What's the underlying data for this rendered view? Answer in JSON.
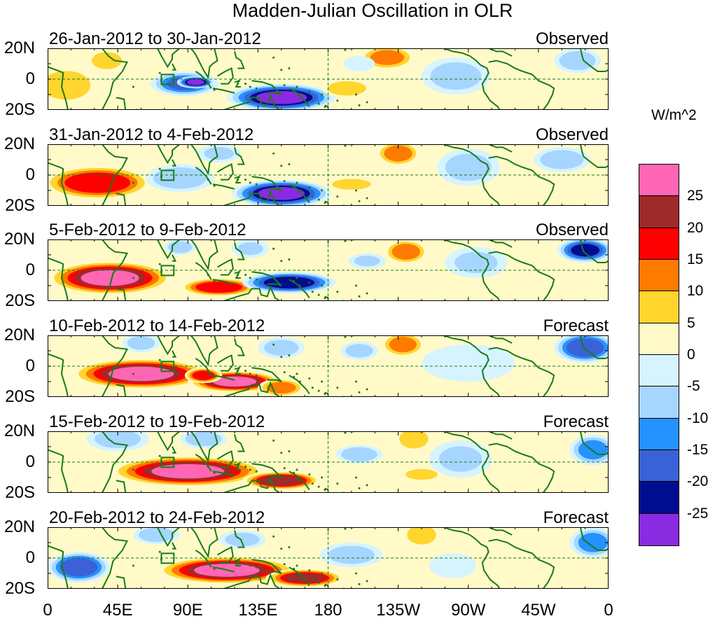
{
  "title": "Madden-Julian Oscillation in OLR",
  "panels": [
    {
      "date": "26-Jan-2012 to 30-Jan-2012",
      "status": "Observed",
      "anoms": [
        {
          "lon": 12,
          "lat": -4,
          "rx": 20,
          "ry": 12,
          "v": 12
        },
        {
          "lon": 38,
          "lat": 12,
          "rx": 14,
          "ry": 8,
          "v": 8
        },
        {
          "lon": 62,
          "lat": -10,
          "rx": 12,
          "ry": 8,
          "v": 6
        },
        {
          "lon": 88,
          "lat": -3,
          "rx": 22,
          "ry": 8,
          "v": -18
        },
        {
          "lon": 95,
          "lat": -2,
          "rx": 12,
          "ry": 4,
          "v": -28
        },
        {
          "lon": 150,
          "lat": -12,
          "rx": 35,
          "ry": 9,
          "v": -28
        },
        {
          "lon": 115,
          "lat": 14,
          "rx": 12,
          "ry": 6,
          "v": 6
        },
        {
          "lon": 192,
          "lat": -6,
          "rx": 16,
          "ry": 6,
          "v": 12
        },
        {
          "lon": 218,
          "lat": 14,
          "rx": 18,
          "ry": 8,
          "v": 14
        },
        {
          "lon": 200,
          "lat": 10,
          "rx": 10,
          "ry": 5,
          "v": -6
        },
        {
          "lon": 262,
          "lat": 2,
          "rx": 22,
          "ry": 12,
          "v": -10
        },
        {
          "lon": 300,
          "lat": -8,
          "rx": 16,
          "ry": 8,
          "v": 6
        },
        {
          "lon": 340,
          "lat": 12,
          "rx": 15,
          "ry": 8,
          "v": -12
        },
        {
          "lon": 350,
          "lat": -4,
          "rx": 8,
          "ry": 8,
          "v": 5
        }
      ]
    },
    {
      "date": "31-Jan-2012 to 4-Feb-2012",
      "status": "Observed",
      "anoms": [
        {
          "lon": 32,
          "lat": -5,
          "rx": 35,
          "ry": 11,
          "v": 22
        },
        {
          "lon": 85,
          "lat": -2,
          "rx": 22,
          "ry": 9,
          "v": -12
        },
        {
          "lon": 150,
          "lat": -12,
          "rx": 32,
          "ry": 9,
          "v": -28
        },
        {
          "lon": 110,
          "lat": 14,
          "rx": 14,
          "ry": 6,
          "v": -8
        },
        {
          "lon": 80,
          "lat": 14,
          "rx": 12,
          "ry": 6,
          "v": 6
        },
        {
          "lon": 225,
          "lat": 14,
          "rx": 14,
          "ry": 8,
          "v": 16
        },
        {
          "lon": 270,
          "lat": 5,
          "rx": 20,
          "ry": 12,
          "v": -10
        },
        {
          "lon": 330,
          "lat": 10,
          "rx": 18,
          "ry": 8,
          "v": -12
        },
        {
          "lon": 295,
          "lat": -8,
          "rx": 14,
          "ry": 6,
          "v": 6
        },
        {
          "lon": 195,
          "lat": -6,
          "rx": 18,
          "ry": 5,
          "v": 8
        }
      ]
    },
    {
      "date": "5-Feb-2012 to 9-Feb-2012",
      "status": "Observed",
      "anoms": [
        {
          "lon": 40,
          "lat": -5,
          "rx": 40,
          "ry": 11,
          "v": 28
        },
        {
          "lon": 110,
          "lat": -11,
          "rx": 25,
          "ry": 6,
          "v": 22
        },
        {
          "lon": 155,
          "lat": -8,
          "rx": 30,
          "ry": 7,
          "v": -26
        },
        {
          "lon": 85,
          "lat": 15,
          "rx": 10,
          "ry": 5,
          "v": -12
        },
        {
          "lon": 130,
          "lat": 14,
          "rx": 12,
          "ry": 6,
          "v": -8
        },
        {
          "lon": 230,
          "lat": 12,
          "rx": 14,
          "ry": 8,
          "v": 16
        },
        {
          "lon": 205,
          "lat": 6,
          "rx": 12,
          "ry": 5,
          "v": -8
        },
        {
          "lon": 275,
          "lat": 5,
          "rx": 20,
          "ry": 10,
          "v": -8
        },
        {
          "lon": 345,
          "lat": 13,
          "rx": 18,
          "ry": 8,
          "v": -24
        },
        {
          "lon": 300,
          "lat": -6,
          "rx": 14,
          "ry": 6,
          "v": 6
        }
      ]
    },
    {
      "date": "10-Feb-2012 to 14-Feb-2012",
      "status": "Forecast",
      "anoms": [
        {
          "lon": 60,
          "lat": -5,
          "rx": 45,
          "ry": 10,
          "v": 28
        },
        {
          "lon": 120,
          "lat": -10,
          "rx": 30,
          "ry": 7,
          "v": 28
        },
        {
          "lon": 100,
          "lat": -6,
          "rx": 12,
          "ry": 5,
          "v": 22
        },
        {
          "lon": 150,
          "lat": -14,
          "rx": 15,
          "ry": 6,
          "v": 15
        },
        {
          "lon": 60,
          "lat": 15,
          "rx": 12,
          "ry": 6,
          "v": -10
        },
        {
          "lon": 150,
          "lat": 12,
          "rx": 15,
          "ry": 7,
          "v": -10
        },
        {
          "lon": 228,
          "lat": 14,
          "rx": 14,
          "ry": 8,
          "v": 15
        },
        {
          "lon": 200,
          "lat": 10,
          "rx": 12,
          "ry": 6,
          "v": -10
        },
        {
          "lon": 270,
          "lat": 2,
          "rx": 30,
          "ry": 12,
          "v": -6
        },
        {
          "lon": 345,
          "lat": 12,
          "rx": 20,
          "ry": 10,
          "v": -22
        }
      ]
    },
    {
      "date": "15-Feb-2012 to 19-Feb-2012",
      "status": "Forecast",
      "anoms": [
        {
          "lon": 90,
          "lat": -6,
          "rx": 50,
          "ry": 10,
          "v": 28
        },
        {
          "lon": 150,
          "lat": -12,
          "rx": 25,
          "ry": 6,
          "v": 26
        },
        {
          "lon": 45,
          "lat": 15,
          "rx": 20,
          "ry": 8,
          "v": -10
        },
        {
          "lon": 100,
          "lat": 15,
          "rx": 15,
          "ry": 6,
          "v": -12
        },
        {
          "lon": 200,
          "lat": 5,
          "rx": 15,
          "ry": 6,
          "v": -12
        },
        {
          "lon": 235,
          "lat": 15,
          "rx": 12,
          "ry": 8,
          "v": 12
        },
        {
          "lon": 240,
          "lat": -8,
          "rx": 15,
          "ry": 5,
          "v": 8
        },
        {
          "lon": 265,
          "lat": 2,
          "rx": 20,
          "ry": 12,
          "v": -8
        },
        {
          "lon": 350,
          "lat": 8,
          "rx": 15,
          "ry": 10,
          "v": -15
        }
      ]
    },
    {
      "date": "20-Feb-2012 to 24-Feb-2012",
      "status": "Forecast",
      "anoms": [
        {
          "lon": 115,
          "lat": -8,
          "rx": 45,
          "ry": 9,
          "v": 28
        },
        {
          "lon": 165,
          "lat": -13,
          "rx": 25,
          "ry": 6,
          "v": 24
        },
        {
          "lon": 20,
          "lat": -6,
          "rx": 20,
          "ry": 10,
          "v": -22
        },
        {
          "lon": 70,
          "lat": 15,
          "rx": 15,
          "ry": 6,
          "v": -12
        },
        {
          "lon": 125,
          "lat": 12,
          "rx": 15,
          "ry": 6,
          "v": -10
        },
        {
          "lon": 195,
          "lat": 2,
          "rx": 20,
          "ry": 8,
          "v": -10
        },
        {
          "lon": 240,
          "lat": 15,
          "rx": 12,
          "ry": 8,
          "v": 12
        },
        {
          "lon": 260,
          "lat": -5,
          "rx": 15,
          "ry": 8,
          "v": -6
        },
        {
          "lon": 350,
          "lat": 10,
          "rx": 15,
          "ry": 10,
          "v": -15
        }
      ]
    }
  ],
  "y_labels": [
    "20N",
    "0",
    "20S"
  ],
  "x_labels": [
    "0",
    "45E",
    "90E",
    "135E",
    "180",
    "135W",
    "90W",
    "45W",
    "0"
  ],
  "units": "W/m^2",
  "colorbar": {
    "colors": [
      "#ff66b3",
      "#9e2a2a",
      "#ff0000",
      "#ff7a00",
      "#ffd52e",
      "#fffac8",
      "#d6f4ff",
      "#a6d6ff",
      "#2492ff",
      "#3a62d6",
      "#000d8f",
      "#8a2be2"
    ],
    "labels": [
      "25",
      "20",
      "15",
      "10",
      "5",
      "0",
      "-5",
      "-10",
      "-15",
      "-20",
      "-25"
    ]
  },
  "colors": {
    "land_outline": "#1a7a1a",
    "background": "#fffac8"
  }
}
